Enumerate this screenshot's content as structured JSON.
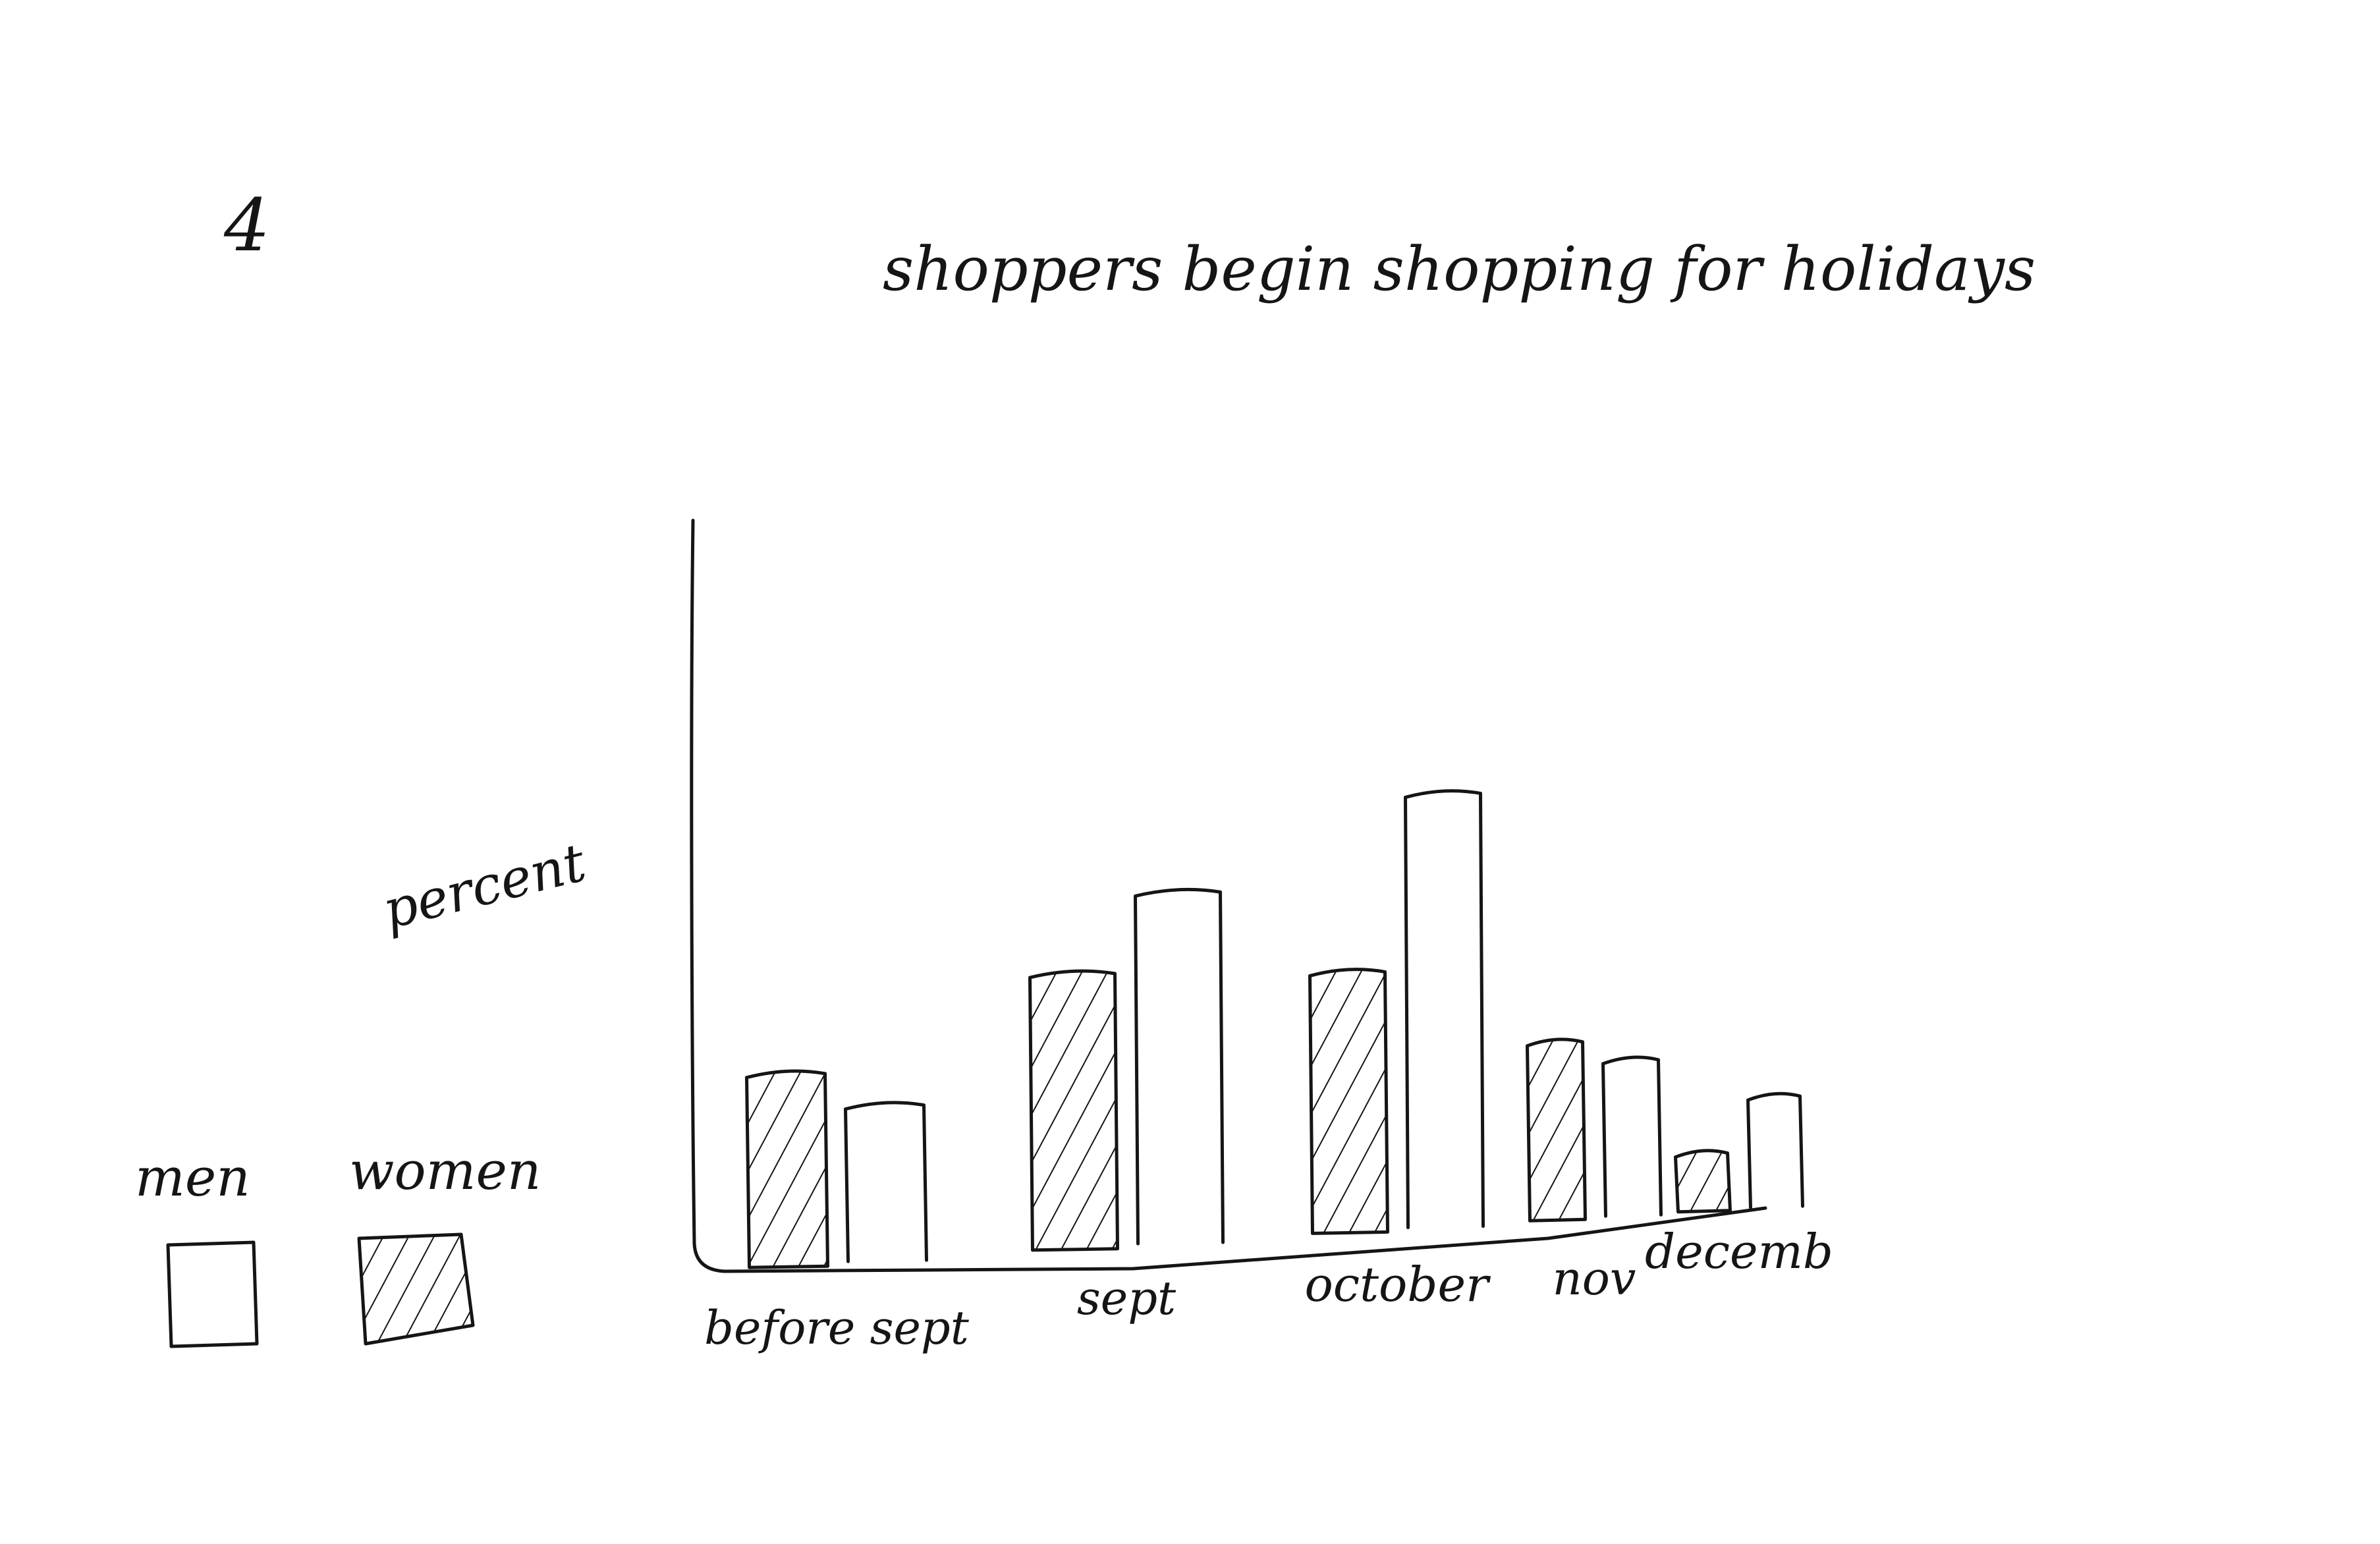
{
  "page_number": "4",
  "chart_data": {
    "type": "bar",
    "title": "shoppers begin shopping for holidays",
    "ylabel": "percent",
    "xlabel": "",
    "categories": [
      "before sept",
      "sept",
      "october",
      "nov",
      "decemb"
    ],
    "series": [
      {
        "name": "women",
        "pattern": "hatched",
        "values": [
          26,
          37,
          35,
          24,
          8
        ]
      },
      {
        "name": "men",
        "pattern": "plain",
        "values": [
          21,
          47,
          58,
          21,
          15
        ]
      }
    ],
    "ylim": [
      0,
      100
    ],
    "yticks": "none",
    "grid": false,
    "legend": {
      "placement": "bottom-left",
      "entries": [
        {
          "label": "men",
          "pattern": "plain"
        },
        {
          "label": "women",
          "pattern": "hatched"
        }
      ]
    },
    "style": {
      "ink_color": "#151515",
      "background": "#ffffff"
    }
  }
}
